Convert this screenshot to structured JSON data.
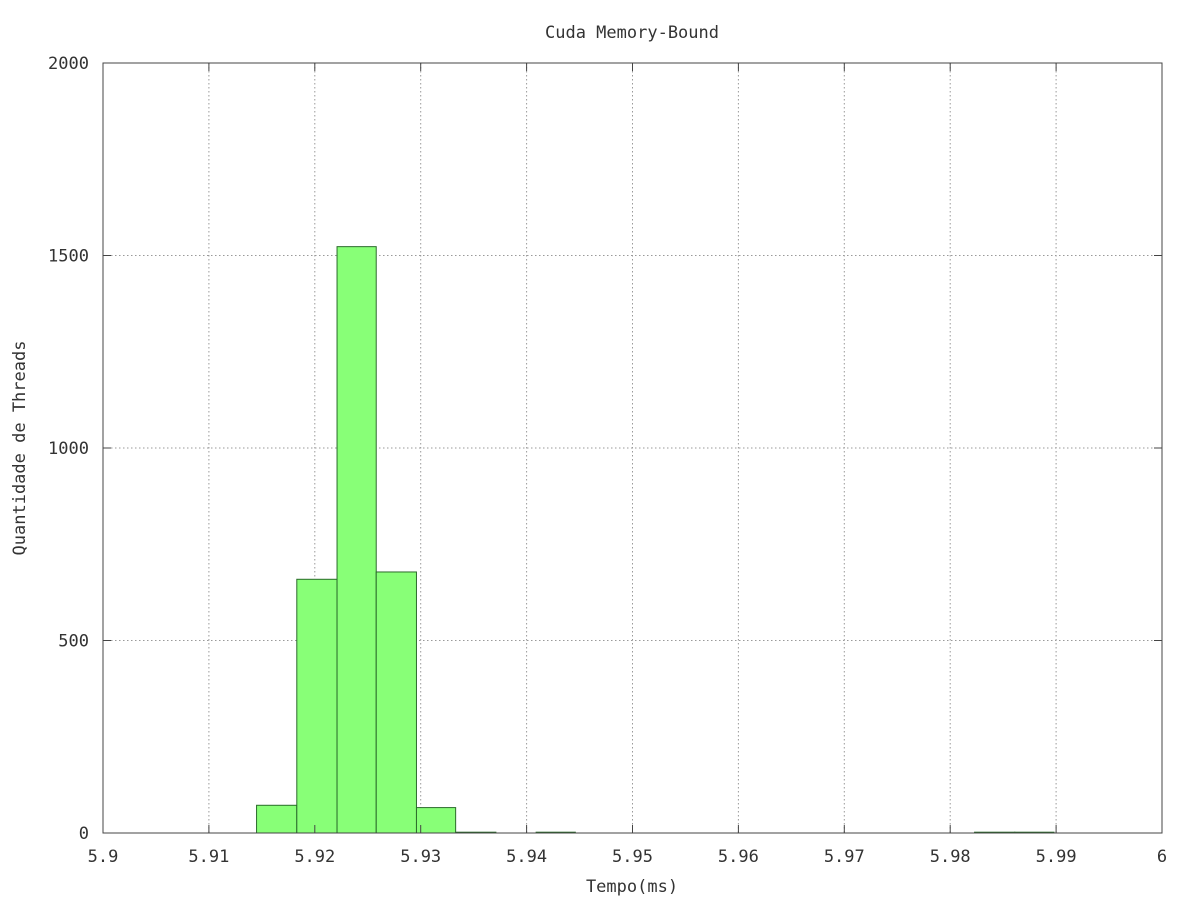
{
  "chart_data": {
    "type": "bar",
    "title": "Cuda Memory-Bound",
    "xlabel": "Tempo(ms)",
    "ylabel": "Quantidade de Threads",
    "xlim": [
      5.9,
      6.0
    ],
    "ylim": [
      0,
      2000
    ],
    "xticks": [
      "5.9",
      "5.91",
      "5.92",
      "5.93",
      "5.94",
      "5.95",
      "5.96",
      "5.97",
      "5.98",
      "5.99",
      "6"
    ],
    "yticks": [
      "0",
      "500",
      "1000",
      "1500",
      "2000"
    ],
    "grid": true,
    "bar_color": "#88ff77",
    "bar_edge_color": "#2a6b2a",
    "bins": [
      {
        "start": 5.9145,
        "end": 5.9183,
        "value": 72
      },
      {
        "start": 5.9183,
        "end": 5.9221,
        "value": 659
      },
      {
        "start": 5.9221,
        "end": 5.9258,
        "value": 1523
      },
      {
        "start": 5.9258,
        "end": 5.9296,
        "value": 678
      },
      {
        "start": 5.9296,
        "end": 5.9333,
        "value": 66
      },
      {
        "start": 5.9333,
        "end": 5.9371,
        "value": 2
      },
      {
        "start": 5.9409,
        "end": 5.9446,
        "value": 1
      },
      {
        "start": 5.9823,
        "end": 5.9861,
        "value": 2
      },
      {
        "start": 5.9861,
        "end": 5.9898,
        "value": 2
      }
    ]
  }
}
